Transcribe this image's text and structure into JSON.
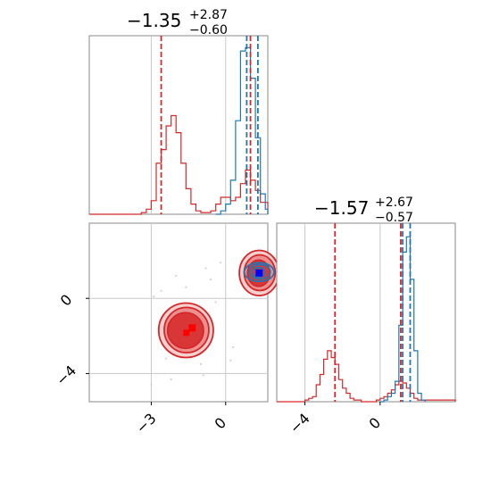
{
  "chart_data": [
    {
      "type": "line",
      "panel": "marginal-x",
      "title": {
        "value": "−1.35",
        "plus": "+2.87",
        "minus": "−0.60"
      },
      "xlim": [
        -5.5,
        1.7
      ],
      "grid": true,
      "series": [
        {
          "color": "#d62728",
          "x": [
            -5.5,
            -3.6,
            -3.4,
            -3.2,
            -3.0,
            -2.8,
            -2.6,
            -2.4,
            -2.2,
            -2.0,
            -1.8,
            -1.6,
            -1.4,
            -1.2,
            -1.0,
            -0.8,
            -0.6,
            -0.4,
            -0.2,
            0.0,
            0.2,
            0.4,
            0.6,
            0.8,
            1.0,
            1.2,
            1.4,
            1.7
          ],
          "values": [
            0,
            0,
            0.01,
            0.03,
            0.08,
            0.3,
            0.38,
            0.52,
            0.58,
            0.48,
            0.3,
            0.15,
            0.06,
            0.02,
            0.01,
            0.01,
            0.02,
            0.06,
            0.1,
            0.1,
            0.08,
            0.1,
            0.18,
            0.26,
            0.2,
            0.14,
            0.07,
            0
          ]
        },
        {
          "color": "#1f77b4",
          "x": [
            -0.4,
            -0.2,
            0.0,
            0.2,
            0.4,
            0.6,
            0.8,
            1.0,
            1.2,
            1.4,
            1.6,
            1.7
          ],
          "values": [
            0,
            0.02,
            0.06,
            0.2,
            0.55,
            0.96,
            0.98,
            0.8,
            0.45,
            0.12,
            0.03,
            0
          ]
        }
      ],
      "vlines": [
        {
          "color": "#d62728",
          "x": -2.6
        },
        {
          "color": "#d62728",
          "x": 1.0
        },
        {
          "color": "#1f77b4",
          "x": 0.85
        },
        {
          "color": "#1f77b4",
          "x": 1.3
        }
      ],
      "markers": [],
      "ylim": [
        0,
        1.05
      ]
    },
    {
      "type": "scatter",
      "panel": "joint",
      "xlim": [
        -5.5,
        1.7
      ],
      "ylim": [
        -5.5,
        4.0
      ],
      "xticks": [
        {
          "value": -3,
          "label": "−3"
        },
        {
          "value": 0,
          "label": "0"
        }
      ],
      "yticks": [
        {
          "value": 0,
          "label": "0"
        },
        {
          "value": -4,
          "label": "−4"
        }
      ],
      "grid": true,
      "contours": [
        {
          "color": "#d62728",
          "center": [
            -1.6,
            -1.7
          ],
          "radii": [
            [
              2.2,
              1.45
            ],
            [
              1.8,
              1.2
            ],
            [
              1.45,
              0.95
            ]
          ]
        },
        {
          "color": "#d62728",
          "center": [
            1.35,
            1.35
          ],
          "radii": [
            [
              1.6,
              1.2
            ],
            [
              1.25,
              0.95
            ],
            [
              0.9,
              0.7
            ]
          ]
        },
        {
          "color": "#1f77b4",
          "center": [
            1.35,
            1.4
          ],
          "radii": [
            [
              1.2,
              0.5
            ],
            [
              0.85,
              0.38
            ],
            [
              0.5,
              0.25
            ]
          ]
        }
      ],
      "markers": [
        {
          "color": "#ff0000",
          "x": -1.35,
          "y": -1.57
        },
        {
          "color": "#0000ff",
          "x": 1.35,
          "y": 1.35
        }
      ]
    },
    {
      "type": "line",
      "panel": "marginal-y",
      "title": {
        "value": "−1.57",
        "plus": "+2.67",
        "minus": "−0.57"
      },
      "xlim": [
        -5.5,
        4.0
      ],
      "xticks": [
        {
          "value": -4,
          "label": "−4"
        },
        {
          "value": 0,
          "label": "0"
        }
      ],
      "grid": true,
      "series": [
        {
          "color": "#d62728",
          "x": [
            -5.5,
            -4.2,
            -4.0,
            -3.8,
            -3.6,
            -3.4,
            -3.2,
            -3.0,
            -2.8,
            -2.6,
            -2.4,
            -2.2,
            -2.0,
            -1.8,
            -1.6,
            -1.4,
            -1.2,
            -1.0,
            -0.8,
            -0.6,
            -0.4,
            -0.2,
            0.0,
            0.2,
            0.4,
            0.6,
            0.8,
            1.0,
            1.2,
            1.4,
            1.6,
            1.8,
            2.0,
            4.0
          ],
          "values": [
            0,
            0,
            0.01,
            0.02,
            0.03,
            0.1,
            0.16,
            0.25,
            0.3,
            0.26,
            0.22,
            0.13,
            0.08,
            0.05,
            0.02,
            0.01,
            0.01,
            0,
            0,
            0,
            0,
            0.01,
            0.02,
            0.03,
            0.05,
            0.07,
            0.1,
            0.12,
            0.11,
            0.08,
            0.05,
            0.02,
            0.01,
            0
          ]
        },
        {
          "color": "#1f77b4",
          "x": [
            0.0,
            0.2,
            0.4,
            0.6,
            0.8,
            1.0,
            1.2,
            1.4,
            1.6,
            1.8,
            2.0,
            2.2,
            2.4
          ],
          "values": [
            0,
            0.01,
            0.03,
            0.05,
            0.12,
            0.45,
            0.88,
            0.97,
            0.72,
            0.3,
            0.05,
            0.01,
            0
          ]
        }
      ],
      "vlines": [
        {
          "color": "#d62728",
          "x": -2.4
        },
        {
          "color": "#d62728",
          "x": 1.1
        },
        {
          "color": "#1f77b4",
          "x": 1.2
        },
        {
          "color": "#1f77b4",
          "x": 1.6
        }
      ],
      "ylim": [
        0,
        1.05
      ]
    }
  ]
}
